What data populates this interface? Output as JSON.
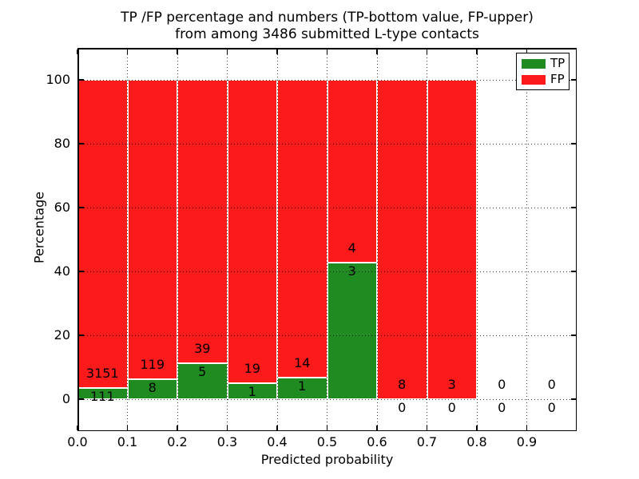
{
  "figure": {
    "title_line1": "TP /FP percentage and numbers (TP-bottom value, FP-upper)",
    "title_line2": "from among 3486 submitted L-type contacts",
    "xlabel": "Predicted probability",
    "ylabel": "Percentage"
  },
  "chart_data": {
    "type": "bar",
    "stacked": true,
    "title": "TP /FP percentage and numbers (TP-bottom value, FP-upper) from among 3486 submitted L-type contacts",
    "xlabel": "Predicted probability",
    "ylabel": "Percentage",
    "values_note": "series values are raw counts per bin; bars are drawn as percentages stacked to 100% (TP bottom, FP top); count labels printed at the TP/FP boundary (FP above, TP below); bins with 0 total draw no bar",
    "bin_width": 0.1,
    "bin_starts": [
      0.0,
      0.1,
      0.2,
      0.3,
      0.4,
      0.5,
      0.6,
      0.7,
      0.8,
      0.9
    ],
    "series": [
      {
        "name": "TP",
        "color": "#208b20",
        "counts": [
          111,
          8,
          5,
          1,
          1,
          3,
          0,
          0,
          0,
          0
        ]
      },
      {
        "name": "FP",
        "color": "#fc1a1a",
        "counts": [
          3151,
          119,
          39,
          19,
          14,
          4,
          8,
          3,
          0,
          0
        ]
      }
    ],
    "x_ticks": [
      "0.0",
      "0.1",
      "0.2",
      "0.3",
      "0.4",
      "0.5",
      "0.6",
      "0.7",
      "0.8",
      "0.9"
    ],
    "y_ticks": [
      0,
      20,
      40,
      60,
      80,
      100
    ],
    "xlim": [
      0,
      1
    ],
    "ylim": [
      -10,
      110
    ],
    "grid": "dotted black, horizontal at y ticks and vertical at x ticks, drawn over bars",
    "bar_edge_color": "#ffffff",
    "legend": {
      "position": "upper right",
      "entries": [
        {
          "label": "TP",
          "color": "#208b20"
        },
        {
          "label": "FP",
          "color": "#fc1a1a"
        }
      ]
    }
  }
}
